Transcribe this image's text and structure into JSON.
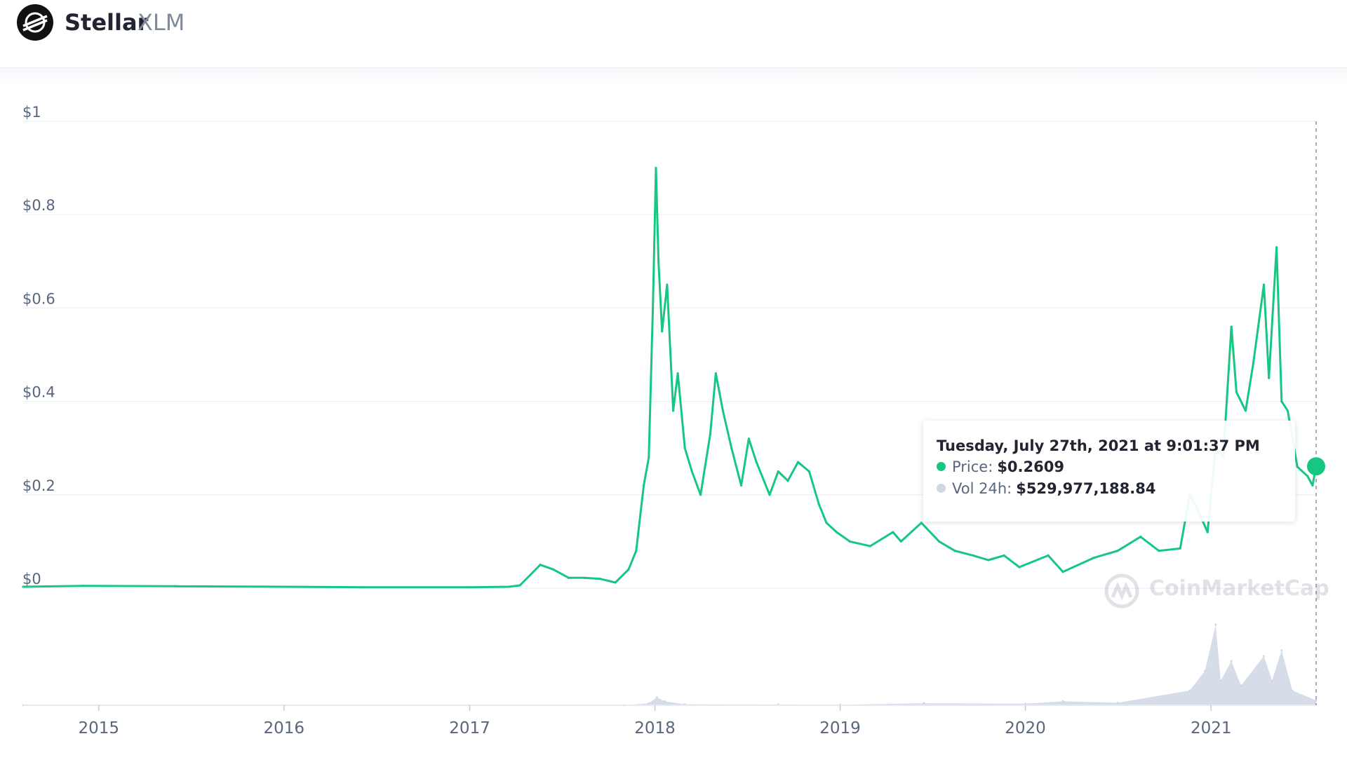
{
  "header": {
    "name": "Stellar",
    "symbol": "XLM",
    "icon": "stellar-logo-icon"
  },
  "tooltip": {
    "date": "Tuesday, July 27th, 2021 at 9:01:37 PM",
    "price_label": "Price:",
    "price_value": "$0.2609",
    "volume_label": "Vol 24h:",
    "volume_value": "$529,977,188.84"
  },
  "watermark": {
    "text": "CoinMarketCap",
    "icon": "coinmarketcap-logo-icon"
  },
  "colors": {
    "price_line": "#16c784",
    "volume_bars": "#cfd6e4",
    "grid": "#eff2f5",
    "axis_text": "#58667e"
  },
  "chart_data": {
    "type": "line",
    "title": "",
    "xlabel": "",
    "ylabel": "",
    "x_range": [
      "2014-08-05",
      "2021-07-27"
    ],
    "ylim": [
      0,
      1
    ],
    "y_ticks": [
      "$0",
      "$0.2",
      "$0.4",
      "$0.6",
      "$0.8",
      "$1"
    ],
    "y_tick_values": [
      0,
      0.2,
      0.4,
      0.6,
      0.8,
      1
    ],
    "x_ticks": [
      "2015",
      "2016",
      "2017",
      "2018",
      "2019",
      "2020",
      "2021"
    ],
    "x_tick_dates": [
      "2015-01-01",
      "2016-01-01",
      "2017-01-01",
      "2018-01-01",
      "2019-01-01",
      "2020-01-01",
      "2021-01-01"
    ],
    "grid": true,
    "series": [
      {
        "name": "Price",
        "points": [
          [
            "2014-08-05",
            0.003
          ],
          [
            "2014-12-01",
            0.005
          ],
          [
            "2015-06-01",
            0.004
          ],
          [
            "2016-01-01",
            0.003
          ],
          [
            "2016-06-01",
            0.002
          ],
          [
            "2017-01-01",
            0.002
          ],
          [
            "2017-03-20",
            0.003
          ],
          [
            "2017-04-10",
            0.006
          ],
          [
            "2017-05-20",
            0.05
          ],
          [
            "2017-06-15",
            0.04
          ],
          [
            "2017-07-15",
            0.022
          ],
          [
            "2017-08-15",
            0.022
          ],
          [
            "2017-09-15",
            0.02
          ],
          [
            "2017-10-15",
            0.012
          ],
          [
            "2017-11-10",
            0.04
          ],
          [
            "2017-11-25",
            0.08
          ],
          [
            "2017-12-10",
            0.22
          ],
          [
            "2017-12-20",
            0.28
          ],
          [
            "2017-12-28",
            0.6
          ],
          [
            "2018-01-03",
            0.9
          ],
          [
            "2018-01-08",
            0.7
          ],
          [
            "2018-01-15",
            0.55
          ],
          [
            "2018-01-25",
            0.65
          ],
          [
            "2018-02-06",
            0.38
          ],
          [
            "2018-02-15",
            0.46
          ],
          [
            "2018-03-01",
            0.3
          ],
          [
            "2018-03-15",
            0.25
          ],
          [
            "2018-04-01",
            0.2
          ],
          [
            "2018-04-20",
            0.33
          ],
          [
            "2018-05-01",
            0.46
          ],
          [
            "2018-05-15",
            0.38
          ],
          [
            "2018-06-01",
            0.3
          ],
          [
            "2018-06-20",
            0.22
          ],
          [
            "2018-07-05",
            0.32
          ],
          [
            "2018-07-20",
            0.27
          ],
          [
            "2018-08-15",
            0.2
          ],
          [
            "2018-09-01",
            0.25
          ],
          [
            "2018-09-20",
            0.23
          ],
          [
            "2018-10-10",
            0.27
          ],
          [
            "2018-11-01",
            0.25
          ],
          [
            "2018-11-20",
            0.18
          ],
          [
            "2018-12-05",
            0.14
          ],
          [
            "2018-12-25",
            0.12
          ],
          [
            "2019-01-20",
            0.1
          ],
          [
            "2019-03-01",
            0.09
          ],
          [
            "2019-04-15",
            0.12
          ],
          [
            "2019-05-01",
            0.1
          ],
          [
            "2019-06-10",
            0.14
          ],
          [
            "2019-07-15",
            0.1
          ],
          [
            "2019-08-15",
            0.08
          ],
          [
            "2019-09-20",
            0.07
          ],
          [
            "2019-10-20",
            0.06
          ],
          [
            "2019-11-20",
            0.07
          ],
          [
            "2019-12-20",
            0.045
          ],
          [
            "2020-02-15",
            0.07
          ],
          [
            "2020-03-15",
            0.035
          ],
          [
            "2020-05-15",
            0.065
          ],
          [
            "2020-07-01",
            0.08
          ],
          [
            "2020-08-15",
            0.11
          ],
          [
            "2020-09-20",
            0.08
          ],
          [
            "2020-11-01",
            0.085
          ],
          [
            "2020-11-20",
            0.2
          ],
          [
            "2020-12-05",
            0.17
          ],
          [
            "2020-12-25",
            0.12
          ],
          [
            "2021-01-10",
            0.3
          ],
          [
            "2021-01-25",
            0.28
          ],
          [
            "2021-02-10",
            0.56
          ],
          [
            "2021-02-20",
            0.42
          ],
          [
            "2021-03-10",
            0.38
          ],
          [
            "2021-03-25",
            0.48
          ],
          [
            "2021-04-15",
            0.65
          ],
          [
            "2021-04-25",
            0.45
          ],
          [
            "2021-05-10",
            0.73
          ],
          [
            "2021-05-20",
            0.4
          ],
          [
            "2021-06-01",
            0.38
          ],
          [
            "2021-06-20",
            0.26
          ],
          [
            "2021-07-10",
            0.24
          ],
          [
            "2021-07-20",
            0.22
          ],
          [
            "2021-07-27",
            0.2609
          ]
        ]
      },
      {
        "name": "Vol 24h",
        "points": [
          [
            "2014-08-05",
            0.0
          ],
          [
            "2017-11-01",
            0.0
          ],
          [
            "2017-12-20",
            0.02
          ],
          [
            "2018-01-05",
            0.08
          ],
          [
            "2018-01-20",
            0.04
          ],
          [
            "2018-03-01",
            0.01
          ],
          [
            "2018-09-01",
            0.008
          ],
          [
            "2019-01-01",
            0.006
          ],
          [
            "2019-06-15",
            0.02
          ],
          [
            "2020-01-01",
            0.015
          ],
          [
            "2020-03-15",
            0.04
          ],
          [
            "2020-07-01",
            0.025
          ],
          [
            "2020-11-20",
            0.15
          ],
          [
            "2020-12-20",
            0.35
          ],
          [
            "2021-01-10",
            0.82
          ],
          [
            "2021-01-20",
            0.25
          ],
          [
            "2021-02-10",
            0.45
          ],
          [
            "2021-03-01",
            0.2
          ],
          [
            "2021-04-15",
            0.5
          ],
          [
            "2021-05-01",
            0.25
          ],
          [
            "2021-05-20",
            0.56
          ],
          [
            "2021-06-10",
            0.15
          ],
          [
            "2021-07-27",
            0.05
          ]
        ]
      }
    ]
  }
}
